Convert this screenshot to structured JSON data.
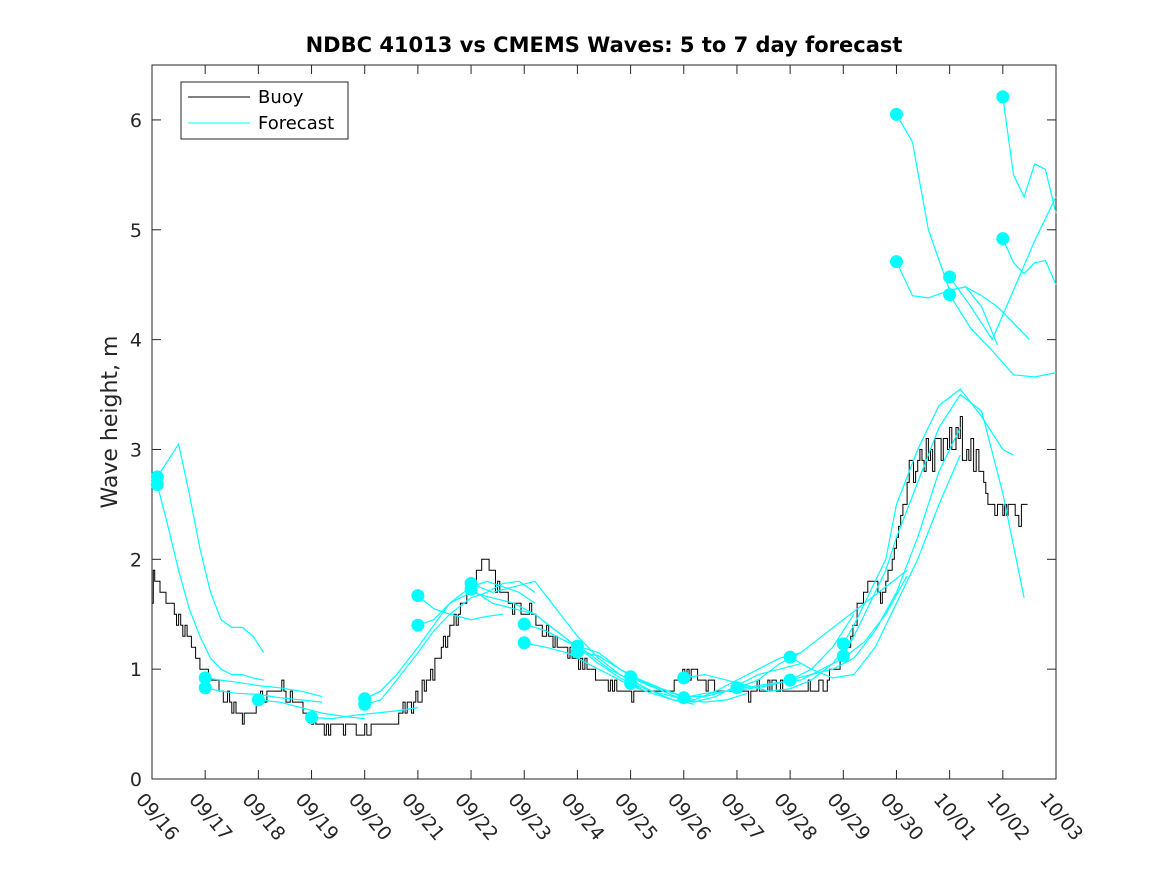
{
  "chart_data": {
    "type": "line",
    "title": "NDBC 41013 vs CMEMS Waves: 5 to 7 day forecast",
    "xlabel": "",
    "ylabel": "Wave height, m",
    "xlim": [
      0,
      17
    ],
    "ylim": [
      0,
      6.5
    ],
    "x_tick_labels": [
      "09/16",
      "09/17",
      "09/18",
      "09/19",
      "09/20",
      "09/21",
      "09/22",
      "09/23",
      "09/24",
      "09/25",
      "09/26",
      "09/27",
      "09/28",
      "09/29",
      "09/30",
      "10/01",
      "10/02",
      "10/03"
    ],
    "y_ticks": [
      0,
      1,
      2,
      3,
      4,
      5,
      6
    ],
    "legend": {
      "position": "top-left",
      "entries": [
        "Buoy",
        "Forecast"
      ]
    },
    "colors": {
      "buoy": "#000000",
      "forecast": "#00ffff",
      "axes": "#262626"
    },
    "buoy_keypoints": {
      "x": [
        0.0,
        0.05,
        0.15,
        0.3,
        0.5,
        0.7,
        0.9,
        1.1,
        1.3,
        1.5,
        1.7,
        1.8,
        2.0,
        2.2,
        2.4,
        2.6,
        2.8,
        3.0,
        3.2,
        3.4,
        3.6,
        3.8,
        4.0,
        4.2,
        4.4,
        4.6,
        4.8,
        5.0,
        5.2,
        5.4,
        5.6,
        5.8,
        6.0,
        6.1,
        6.2,
        6.3,
        6.5,
        6.7,
        6.9,
        7.1,
        7.3,
        7.5,
        7.7,
        7.9,
        8.1,
        8.3,
        8.5,
        8.7,
        8.9,
        9.1,
        9.3,
        9.5,
        9.7,
        9.9,
        10.1,
        10.3,
        10.5,
        10.7,
        10.9,
        11.1,
        11.3,
        11.5,
        11.7,
        11.9,
        12.1,
        12.3,
        12.5,
        12.7,
        12.9,
        13.1,
        13.3,
        13.5,
        13.6,
        13.7,
        13.8,
        14.0,
        14.2,
        14.4,
        14.6,
        14.8,
        15.0,
        15.2,
        15.4,
        15.5,
        15.6,
        15.8,
        15.9,
        16.0,
        16.1,
        16.2,
        16.3,
        16.4,
        16.5
      ],
      "y": [
        1.7,
        1.9,
        1.75,
        1.6,
        1.4,
        1.25,
        1.05,
        0.95,
        0.8,
        0.65,
        0.55,
        0.6,
        0.7,
        0.8,
        0.85,
        0.75,
        0.65,
        0.55,
        0.5,
        0.48,
        0.45,
        0.45,
        0.45,
        0.48,
        0.5,
        0.55,
        0.65,
        0.75,
        0.9,
        1.15,
        1.35,
        1.55,
        1.75,
        1.85,
        1.9,
        2.0,
        1.75,
        1.6,
        1.55,
        1.5,
        1.4,
        1.3,
        1.2,
        1.1,
        1.05,
        0.95,
        0.9,
        0.85,
        0.8,
        0.78,
        0.78,
        0.8,
        0.82,
        0.9,
        1.0,
        0.95,
        0.85,
        0.82,
        0.8,
        0.78,
        0.8,
        0.82,
        0.85,
        0.8,
        0.78,
        0.8,
        0.85,
        0.9,
        1.0,
        1.2,
        1.6,
        1.8,
        1.75,
        1.65,
        1.8,
        2.2,
        2.7,
        2.9,
        3.0,
        2.95,
        3.05,
        3.1,
        3.0,
        2.8,
        2.7,
        2.6,
        2.5,
        2.4,
        2.5,
        2.45,
        2.35,
        2.5,
        2.6
      ]
    },
    "series": [
      {
        "name": "Forecast",
        "x": [
          0.1,
          0.3,
          0.5,
          0.7,
          0.9,
          1.1,
          1.3,
          1.5,
          1.7,
          1.9,
          2.1
        ],
        "y": [
          2.75,
          2.9,
          3.05,
          2.6,
          2.1,
          1.7,
          1.45,
          1.38,
          1.38,
          1.3,
          1.15
        ]
      },
      {
        "name": "Forecast",
        "x": [
          0.1,
          0.3,
          0.5,
          0.7,
          0.9,
          1.1,
          1.3,
          1.5,
          1.7,
          1.9,
          2.1
        ],
        "y": [
          2.68,
          2.3,
          1.9,
          1.55,
          1.3,
          1.1,
          1.0,
          0.95,
          0.95,
          0.92,
          0.9
        ]
      },
      {
        "name": "Forecast",
        "x": [
          1.0,
          1.3,
          1.6,
          2.0,
          2.4,
          2.8,
          3.2
        ],
        "y": [
          0.92,
          0.9,
          0.88,
          0.85,
          0.83,
          0.8,
          0.75
        ]
      },
      {
        "name": "Forecast",
        "x": [
          1.0,
          1.3,
          1.6,
          2.0,
          2.4,
          2.8,
          3.2
        ],
        "y": [
          0.83,
          0.8,
          0.78,
          0.77,
          0.74,
          0.72,
          0.7
        ]
      },
      {
        "name": "Forecast",
        "x": [
          2.0,
          2.4,
          2.8,
          3.2,
          3.6,
          4.0
        ],
        "y": [
          0.72,
          0.7,
          0.65,
          0.6,
          0.57,
          0.55
        ]
      },
      {
        "name": "Forecast",
        "x": [
          3.0,
          3.4,
          3.8,
          4.2,
          4.6,
          5.0
        ],
        "y": [
          0.56,
          0.55,
          0.58,
          0.6,
          0.62,
          0.65
        ]
      },
      {
        "name": "Forecast",
        "x": [
          4.0,
          4.3,
          4.6,
          5.0,
          5.3,
          5.6,
          6.0,
          6.3,
          6.6,
          6.9,
          7.2
        ],
        "y": [
          0.73,
          0.8,
          0.95,
          1.2,
          1.4,
          1.6,
          1.75,
          1.8,
          1.75,
          1.7,
          1.6
        ]
      },
      {
        "name": "Forecast",
        "x": [
          4.0,
          4.3,
          4.6,
          5.0,
          5.3,
          5.6,
          6.0,
          6.3,
          6.6,
          6.9,
          7.2
        ],
        "y": [
          0.68,
          0.72,
          0.9,
          1.15,
          1.35,
          1.5,
          1.65,
          1.7,
          1.78,
          1.8,
          1.7
        ]
      },
      {
        "name": "Forecast",
        "x": [
          5.0,
          5.3,
          5.6,
          6.0,
          6.3,
          6.6
        ],
        "y": [
          1.67,
          1.55,
          1.5,
          1.45,
          1.48,
          1.5
        ]
      },
      {
        "name": "Forecast",
        "x": [
          5.0,
          5.3,
          5.6,
          6.0,
          6.4,
          6.8,
          7.2,
          7.6,
          8.0
        ],
        "y": [
          1.4,
          1.45,
          1.6,
          1.7,
          1.65,
          1.6,
          1.5,
          1.35,
          1.2
        ]
      },
      {
        "name": "Forecast",
        "x": [
          6.0,
          6.4,
          6.8,
          7.2,
          7.6,
          8.0,
          8.4,
          8.8,
          9.2
        ],
        "y": [
          1.78,
          1.7,
          1.75,
          1.8,
          1.55,
          1.3,
          1.1,
          0.95,
          0.85
        ]
      },
      {
        "name": "Forecast",
        "x": [
          6.0,
          6.4,
          6.8,
          7.2,
          7.6,
          8.0,
          8.4,
          8.8,
          9.2
        ],
        "y": [
          1.73,
          1.6,
          1.55,
          1.5,
          1.35,
          1.2,
          1.05,
          0.92,
          0.82
        ]
      },
      {
        "name": "Forecast",
        "x": [
          7.0,
          7.4,
          7.8,
          8.2,
          8.6,
          9.0,
          9.4,
          9.8,
          10.2
        ],
        "y": [
          1.41,
          1.35,
          1.25,
          1.15,
          1.0,
          0.9,
          0.8,
          0.72,
          0.68
        ]
      },
      {
        "name": "Forecast",
        "x": [
          7.0,
          7.4,
          7.8,
          8.2,
          8.6,
          9.0,
          9.4,
          9.8,
          10.2
        ],
        "y": [
          1.24,
          1.2,
          1.15,
          1.05,
          0.95,
          0.85,
          0.78,
          0.72,
          0.7
        ]
      },
      {
        "name": "Forecast",
        "x": [
          8.0,
          8.4,
          8.8,
          9.2,
          9.6,
          10.0,
          10.4,
          10.8,
          11.2
        ],
        "y": [
          1.21,
          1.15,
          1.0,
          0.88,
          0.8,
          0.72,
          0.7,
          0.72,
          0.78
        ]
      },
      {
        "name": "Forecast",
        "x": [
          8.0,
          8.4,
          8.8,
          9.2,
          9.6,
          10.0,
          10.4,
          10.8,
          11.2
        ],
        "y": [
          1.16,
          1.12,
          1.0,
          0.9,
          0.82,
          0.75,
          0.75,
          0.8,
          0.85
        ]
      },
      {
        "name": "Forecast",
        "x": [
          9.0,
          9.4,
          9.8,
          10.2,
          10.6,
          11.0,
          11.4,
          11.8,
          12.2
        ],
        "y": [
          0.93,
          0.85,
          0.78,
          0.72,
          0.8,
          0.9,
          1.0,
          1.1,
          1.15
        ]
      },
      {
        "name": "Forecast",
        "x": [
          9.0,
          9.4,
          9.8,
          10.2,
          10.6,
          11.0,
          11.4,
          11.8,
          12.2
        ],
        "y": [
          0.87,
          0.8,
          0.75,
          0.7,
          0.75,
          0.85,
          0.95,
          1.0,
          1.05
        ]
      },
      {
        "name": "Forecast",
        "x": [
          10.0,
          10.4,
          10.8,
          11.2,
          11.6,
          12.0,
          12.4,
          12.8,
          13.2
        ],
        "y": [
          0.92,
          0.95,
          0.9,
          0.85,
          0.8,
          0.82,
          0.9,
          1.05,
          1.3
        ]
      },
      {
        "name": "Forecast",
        "x": [
          10.0,
          10.4,
          10.8,
          11.2,
          11.6,
          12.0,
          12.4,
          12.8,
          13.2
        ],
        "y": [
          0.74,
          0.78,
          0.8,
          0.82,
          0.85,
          0.9,
          1.0,
          1.2,
          1.5
        ]
      },
      {
        "name": "Forecast",
        "x": [
          11.0,
          11.4,
          11.8,
          12.2,
          12.6,
          13.0,
          13.4,
          13.8,
          14.2
        ],
        "y": [
          0.83,
          0.9,
          1.05,
          1.15,
          1.3,
          1.45,
          1.6,
          1.75,
          1.9
        ]
      },
      {
        "name": "Forecast",
        "x": [
          11.0,
          11.4,
          11.8,
          12.2,
          12.6,
          13.0,
          13.4,
          13.8,
          14.2
        ],
        "y": [
          0.82,
          0.85,
          0.88,
          0.9,
          1.0,
          1.1,
          1.25,
          1.5,
          1.85
        ]
      },
      {
        "name": "Forecast",
        "x": [
          12.0,
          12.4,
          12.8,
          13.2,
          13.6,
          14.0,
          14.4,
          14.8,
          15.2
        ],
        "y": [
          1.11,
          1.0,
          0.92,
          0.95,
          1.2,
          1.6,
          2.0,
          2.5,
          2.95
        ]
      },
      {
        "name": "Forecast",
        "x": [
          12.0,
          12.4,
          12.8,
          13.2,
          13.6,
          14.0,
          14.4,
          14.8,
          15.2
        ],
        "y": [
          0.9,
          0.95,
          1.0,
          1.1,
          1.35,
          1.7,
          2.2,
          2.8,
          3.2
        ]
      },
      {
        "name": "Forecast",
        "x": [
          13.0,
          13.2,
          13.4,
          13.6,
          13.8,
          14.0,
          14.4,
          14.8,
          15.2,
          15.6,
          16.0,
          16.2
        ],
        "y": [
          1.23,
          1.4,
          1.6,
          1.8,
          2.0,
          2.5,
          3.0,
          3.4,
          3.55,
          3.3,
          3.0,
          2.95
        ]
      },
      {
        "name": "Forecast",
        "x": [
          13.0,
          13.2,
          13.4,
          13.6,
          13.8,
          14.0,
          14.4,
          14.8,
          15.2,
          15.6,
          16.0,
          16.4
        ],
        "y": [
          1.12,
          1.3,
          1.5,
          1.7,
          1.9,
          2.2,
          2.7,
          3.2,
          3.5,
          3.35,
          2.6,
          1.65
        ]
      },
      {
        "name": "Forecast",
        "x": [
          14.0,
          14.3,
          14.6,
          15.0,
          15.3,
          15.6,
          15.9
        ],
        "y": [
          6.05,
          5.8,
          5.0,
          4.45,
          4.48,
          4.3,
          3.95
        ]
      },
      {
        "name": "Forecast",
        "x": [
          14.0,
          14.3,
          14.6,
          15.0,
          15.3,
          15.6,
          15.9,
          16.2,
          16.5
        ],
        "y": [
          4.71,
          4.4,
          4.38,
          4.45,
          4.48,
          4.4,
          4.3,
          4.15,
          4.0
        ]
      },
      {
        "name": "Forecast",
        "x": [
          15.0,
          15.4,
          15.8,
          16.2,
          16.6,
          17.0
        ],
        "y": [
          4.57,
          4.3,
          4.0,
          4.45,
          4.9,
          5.3
        ]
      },
      {
        "name": "Forecast",
        "x": [
          15.0,
          15.4,
          15.8,
          16.2,
          16.6,
          17.0
        ],
        "y": [
          4.41,
          4.1,
          3.9,
          3.68,
          3.66,
          3.7
        ]
      },
      {
        "name": "Forecast",
        "x": [
          16.0,
          16.2,
          16.4,
          16.6,
          16.8,
          17.0
        ],
        "y": [
          6.21,
          5.5,
          5.3,
          5.6,
          5.55,
          5.15
        ]
      },
      {
        "name": "Forecast",
        "x": [
          16.0,
          16.2,
          16.4,
          16.6,
          16.8,
          17.0
        ],
        "y": [
          4.92,
          4.7,
          4.6,
          4.7,
          4.72,
          4.5
        ]
      }
    ],
    "markers": {
      "x": [
        0.1,
        0.1,
        1.0,
        1.0,
        2.0,
        3.0,
        4.0,
        4.0,
        5.0,
        5.0,
        6.0,
        6.0,
        7.0,
        7.0,
        8.0,
        8.0,
        9.0,
        9.0,
        10.0,
        10.0,
        11.0,
        12.0,
        12.0,
        13.0,
        13.0,
        14.0,
        14.0,
        15.0,
        15.0,
        16.0,
        16.0
      ],
      "y": [
        2.75,
        2.68,
        0.92,
        0.83,
        0.72,
        0.56,
        0.73,
        0.68,
        1.67,
        1.4,
        1.78,
        1.73,
        1.41,
        1.24,
        1.21,
        1.16,
        0.93,
        0.87,
        0.92,
        0.74,
        0.83,
        1.11,
        0.9,
        1.23,
        1.12,
        6.05,
        4.71,
        4.57,
        4.41,
        6.21,
        4.92
      ]
    }
  }
}
